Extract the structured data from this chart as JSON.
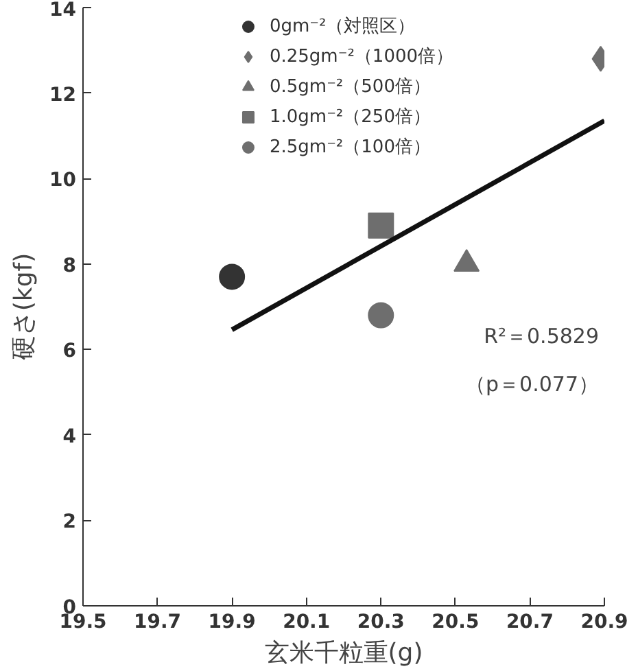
{
  "chart_data": {
    "type": "scatter",
    "xlabel": "玄米千粒重(g)",
    "ylabel": "硬さ(kgf)",
    "xlim": [
      19.5,
      20.9
    ],
    "xticks": [
      19.5,
      19.7,
      19.9,
      20.1,
      20.3,
      20.5,
      20.7,
      20.9
    ],
    "ylim": [
      0,
      14
    ],
    "yticks": [
      0,
      2,
      4,
      6,
      8,
      10,
      12,
      14
    ],
    "grid": false,
    "legend": "top",
    "series": [
      {
        "name": "0gm⁻²（対照区）",
        "color": "#333333",
        "marker": "circle",
        "x": [
          19.9
        ],
        "values": [
          7.7
        ]
      },
      {
        "name": "0.25gm⁻²（1000倍）",
        "color": "#6e6e6e",
        "marker": "diamond",
        "x": [
          20.89
        ],
        "values": [
          12.8
        ]
      },
      {
        "name": "0.5gm⁻²（500倍）",
        "color": "#6e6e6e",
        "marker": "triangle",
        "x": [
          20.53
        ],
        "values": [
          8.0
        ]
      },
      {
        "name": "1.0gm⁻²（250倍）",
        "color": "#6e6e6e",
        "marker": "square",
        "x": [
          20.3
        ],
        "values": [
          8.9
        ]
      },
      {
        "name": "2.5gm⁻²（100倍）",
        "color": "#6e6e6e",
        "marker": "circle",
        "x": [
          20.3
        ],
        "values": [
          6.8
        ]
      },
      {
        "type": "line",
        "color": "#111111",
        "line_style": "solid",
        "x": [
          19.9,
          20.9
        ],
        "values": [
          6.46,
          11.35
        ]
      }
    ],
    "annotations": [
      "R²＝0.5829",
      "（p＝0.077）"
    ]
  }
}
